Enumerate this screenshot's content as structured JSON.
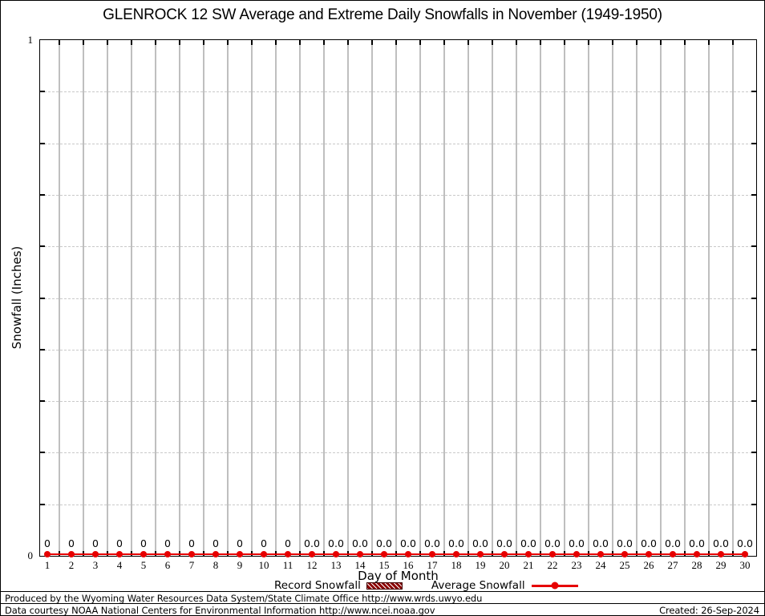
{
  "chart_data": {
    "type": "line",
    "title": "GLENROCK 12 SW Average and Extreme Daily Snowfalls in November (1949-1950)",
    "xlabel": "Day of Month",
    "ylabel": "Snowfall (Inches)",
    "x": [
      1,
      2,
      3,
      4,
      5,
      6,
      7,
      8,
      9,
      10,
      11,
      12,
      13,
      14,
      15,
      16,
      17,
      18,
      19,
      20,
      21,
      22,
      23,
      24,
      25,
      26,
      27,
      28,
      29,
      30
    ],
    "ylim": [
      0,
      1
    ],
    "y_ticks": [
      {
        "value": 0,
        "label": "0"
      },
      {
        "value": 1,
        "label": "1"
      }
    ],
    "y_minor_step": 0.1,
    "grid": {
      "vertical": "solid gray between day ticks",
      "horizontal": "dashed gray every 0.1"
    },
    "legend_position": "bottom-center",
    "series": [
      {
        "name": "Record Snowfall",
        "style": "hatched-box",
        "color": "#8b0000",
        "values": [
          0,
          0,
          0,
          0,
          0,
          0,
          0,
          0,
          0,
          0,
          0,
          0,
          0,
          0,
          0,
          0,
          0,
          0,
          0,
          0,
          0,
          0,
          0,
          0,
          0,
          0,
          0,
          0,
          0,
          0
        ]
      },
      {
        "name": "Average Snowfall",
        "style": "line-points",
        "color": "#e60000",
        "values": [
          0,
          0,
          0,
          0,
          0,
          0,
          0,
          0,
          0,
          0,
          0,
          0.0,
          0.0,
          0.0,
          0.0,
          0.0,
          0.0,
          0.0,
          0.0,
          0.0,
          0.0,
          0.0,
          0.0,
          0.0,
          0.0,
          0.0,
          0.0,
          0.0,
          0.0,
          0.0
        ]
      }
    ],
    "point_labels": [
      "0",
      "0",
      "0",
      "0",
      "0",
      "0",
      "0",
      "0",
      "0",
      "0",
      "0",
      "0.0",
      "0.0",
      "0.0",
      "0.0",
      "0.0",
      "0.0",
      "0.0",
      "0.0",
      "0.0",
      "0.0",
      "0.0",
      "0.0",
      "0.0",
      "0.0",
      "0.0",
      "0.0",
      "0.0",
      "0.0",
      "0.0"
    ]
  },
  "footer": {
    "line1": "Produced by the Wyoming Water Resources Data System/State Climate Office http://www.wrds.uwyo.edu",
    "line2": "Data courtesy NOAA National Centers for Environmental Information http://www.ncei.noaa.gov",
    "created": "Created: 26-Sep-2024"
  },
  "colors": {
    "average_line": "#e60000",
    "record_fill": "#8b0000",
    "grid": "#bfbfbf",
    "axis": "#000000",
    "background": "#ffffff"
  }
}
